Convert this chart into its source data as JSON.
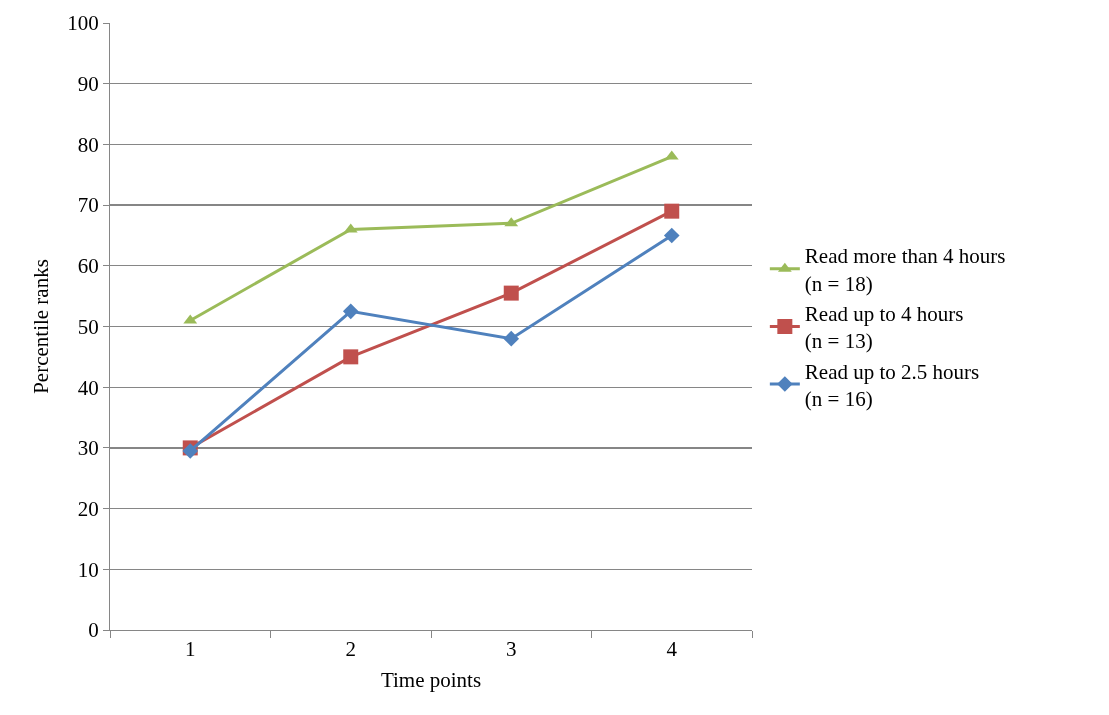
{
  "chart_data": {
    "type": "line",
    "xlabel": "Time points",
    "ylabel": "Percentile ranks",
    "categories": [
      "1",
      "2",
      "3",
      "4"
    ],
    "ylim": [
      0,
      100
    ],
    "yticks": [
      0,
      10,
      20,
      30,
      40,
      50,
      60,
      70,
      80,
      90,
      100
    ],
    "grid": "y",
    "legend": "right",
    "line_style": "solid",
    "series": [
      {
        "name": "Read more than 4 hours\n(n = 18)",
        "color": "#9bbb59",
        "marker": "triangle",
        "values": [
          51,
          66,
          67,
          78
        ]
      },
      {
        "name": "Read up to 4 hours\n(n = 13)",
        "color": "#c0504d",
        "marker": "square",
        "values": [
          30,
          45,
          55.5,
          69
        ]
      },
      {
        "name": "Read up to 2.5 hours\n(n = 16)",
        "color": "#4f81bd",
        "marker": "diamond",
        "values": [
          29.5,
          52.5,
          48,
          65
        ]
      }
    ]
  }
}
